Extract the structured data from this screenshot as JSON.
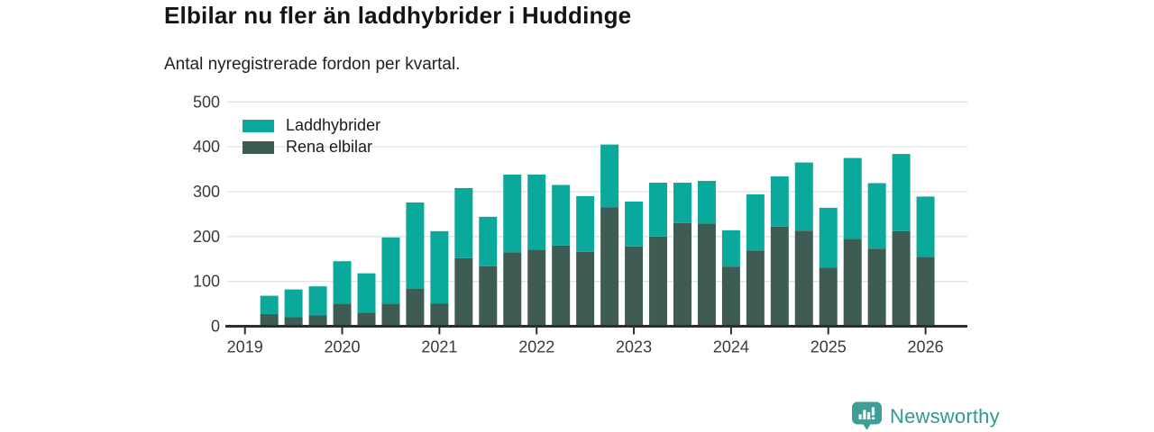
{
  "header": {
    "title": "Elbilar nu fler än laddhybrider i Huddinge",
    "subtitle": "Antal nyregistrerade fordon per kvartal."
  },
  "legend": [
    {
      "label": "Laddhybrider",
      "color": "#0ba99b"
    },
    {
      "label": "Rena elbilar",
      "color": "#3e5b54"
    }
  ],
  "footer": {
    "brand": "Newsworthy",
    "logo_icon": "newsworthy-badge-bar-chart"
  },
  "colors": {
    "laddhybrider": "#0ba99b",
    "rena_elbilar": "#3e5b54",
    "gridline": "#e3e3e3",
    "axis": "#2d2d2d",
    "tick_text": "#3a3a3a",
    "logo_badge": "#3f9f98",
    "brand_text": "#2e9a93"
  },
  "chart_data": {
    "type": "bar",
    "stacked": true,
    "title": "Elbilar nu fler än laddhybrider i Huddinge",
    "subtitle": "Antal nyregistrerade fordon per kvartal.",
    "categories": [
      "2019 Q2",
      "2019 Q3",
      "2019 Q4",
      "2020 Q1",
      "2020 Q2",
      "2020 Q3",
      "2020 Q4",
      "2021 Q1",
      "2021 Q2",
      "2021 Q3",
      "2021 Q4",
      "2022 Q1",
      "2022 Q2",
      "2022 Q3",
      "2022 Q4",
      "2023 Q1",
      "2023 Q2",
      "2023 Q3",
      "2023 Q4",
      "2024 Q1",
      "2024 Q2",
      "2024 Q3",
      "2024 Q4",
      "2025 Q1",
      "2025 Q2",
      "2025 Q3",
      "2025 Q4",
      "2026 Q1"
    ],
    "series": [
      {
        "name": "Rena elbilar",
        "color": "#3e5b54",
        "values": [
          27,
          20,
          24,
          50,
          30,
          50,
          84,
          51,
          152,
          134,
          165,
          171,
          180,
          166,
          265,
          178,
          200,
          230,
          229,
          133,
          169,
          222,
          213,
          131,
          195,
          173,
          212,
          155
        ]
      },
      {
        "name": "Laddhybrider",
        "color": "#0ba99b",
        "values": [
          41,
          62,
          65,
          95,
          88,
          148,
          192,
          161,
          156,
          110,
          173,
          167,
          135,
          124,
          140,
          100,
          120,
          90,
          95,
          81,
          125,
          112,
          152,
          133,
          180,
          146,
          172,
          134
        ]
      }
    ],
    "x_tick_labels": [
      "2019",
      "2020",
      "2021",
      "2022",
      "2023",
      "2024",
      "2025",
      "2026"
    ],
    "quarters_per_year": 4,
    "first_bar_offset_quarters": 1,
    "ylim": [
      0,
      500
    ],
    "y_ticks": [
      0,
      100,
      200,
      300,
      400,
      500
    ],
    "grid": "horizontal",
    "legend_position": "inside-top-left"
  }
}
